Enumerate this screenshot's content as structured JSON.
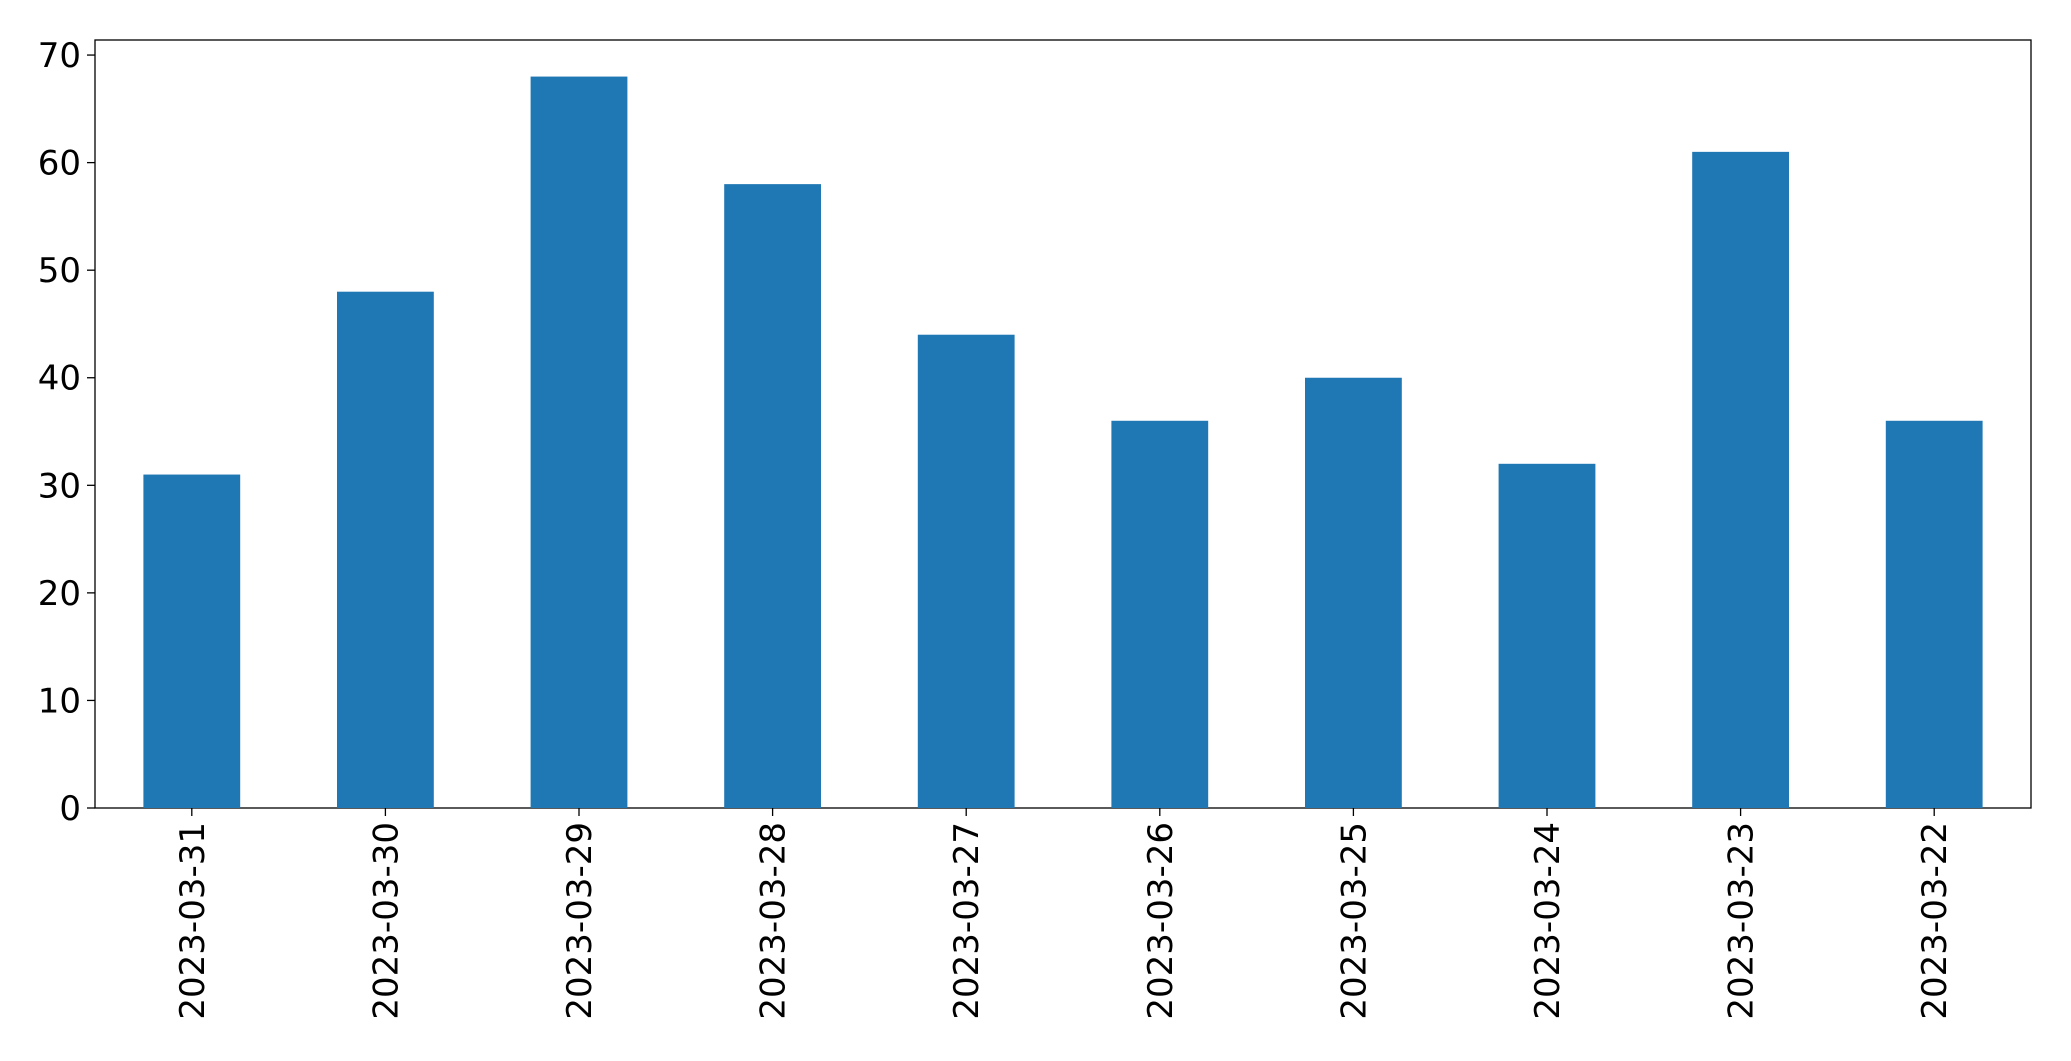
{
  "chart_data": {
    "type": "bar",
    "categories": [
      "2023-03-31",
      "2023-03-30",
      "2023-03-29",
      "2023-03-28",
      "2023-03-27",
      "2023-03-26",
      "2023-03-25",
      "2023-03-24",
      "2023-03-23",
      "2023-03-22"
    ],
    "values": [
      31,
      48,
      68,
      58,
      44,
      36,
      40,
      32,
      61,
      36
    ],
    "color": "#1f77b4",
    "ylim": [
      0,
      71.4
    ],
    "yticks": [
      0,
      10,
      20,
      30,
      40,
      50,
      60,
      70
    ],
    "grid": false
  }
}
